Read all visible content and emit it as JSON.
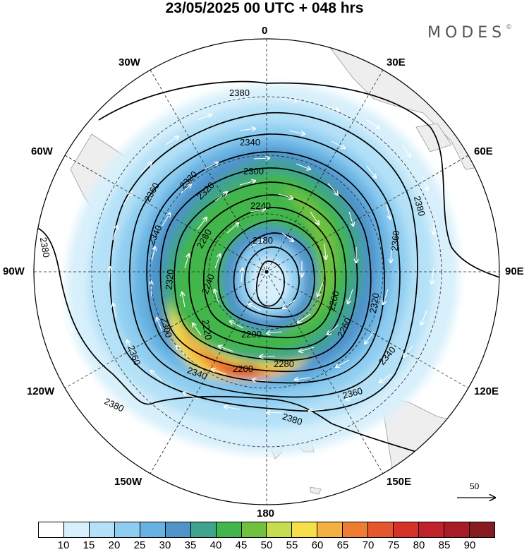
{
  "title": "23/05/2025  00 UTC  + 048 hrs",
  "brand": "MODES",
  "brand_mark": "©",
  "longitude_labels": {
    "lon_0": "0",
    "lon_30e": "30E",
    "lon_60e": "60E",
    "lon_90e": "90E",
    "lon_120e": "120E",
    "lon_150e": "150E",
    "lon_180": "180",
    "lon_150w": "150W",
    "lon_120w": "120W",
    "lon_90w": "90W",
    "lon_60w": "60W",
    "lon_30w": "30W"
  },
  "contour_labels": [
    "2380",
    "2380",
    "2380",
    "2380",
    "2380",
    "2360",
    "2360",
    "2360",
    "2340",
    "2340",
    "2340",
    "2340",
    "2320",
    "2320",
    "2320",
    "2300",
    "2300",
    "2280",
    "2280",
    "2260",
    "2240",
    "2240",
    "2220",
    "2200",
    "2200",
    "2200",
    "2180",
    "2150",
    "2360",
    "2320"
  ],
  "reference_vector": {
    "label": "50"
  },
  "colorbar": {
    "labels": [
      "10",
      "15",
      "20",
      "25",
      "30",
      "35",
      "40",
      "45",
      "50",
      "55",
      "60",
      "65",
      "70",
      "75",
      "80",
      "85",
      "90"
    ],
    "colors": [
      "#ffffff",
      "#d8f0fb",
      "#b4e1f7",
      "#8fcdf0",
      "#67b2e2",
      "#4f93c9",
      "#3fa38e",
      "#42b64c",
      "#71c03f",
      "#c6dd4f",
      "#f6e04a",
      "#f5b042",
      "#ee7d33",
      "#e5562c",
      "#d73228",
      "#c0212a",
      "#a81c28",
      "#851c20"
    ]
  }
}
